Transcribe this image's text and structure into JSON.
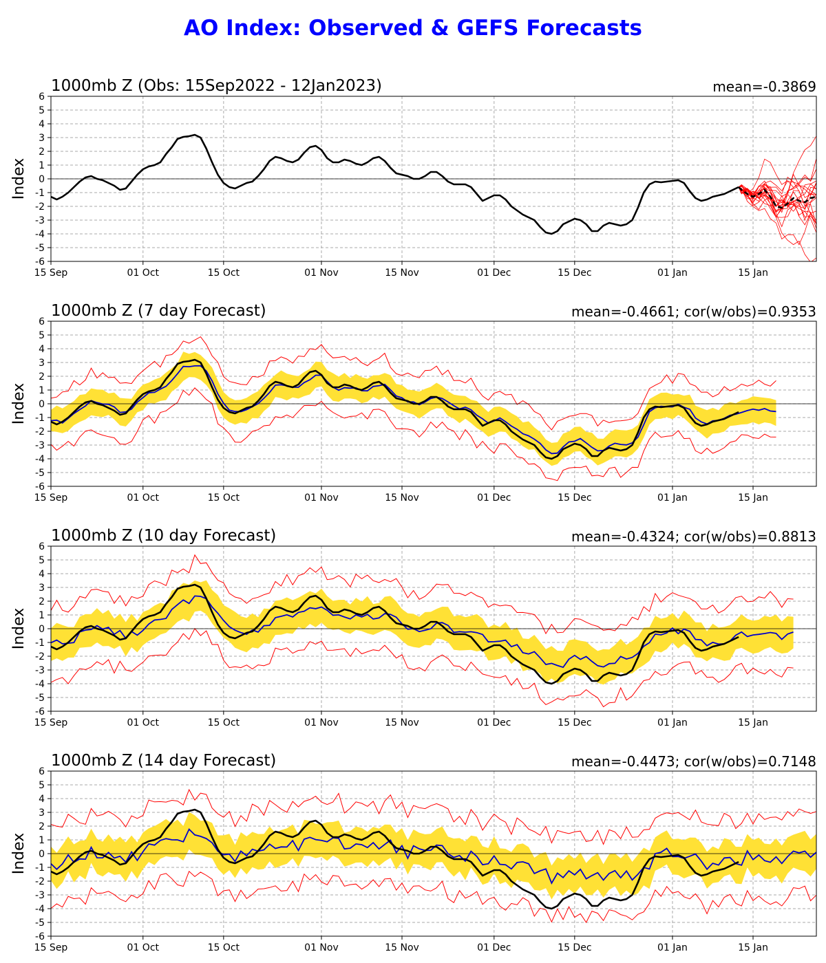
{
  "title": "AO Index: Observed & GEFS Forecasts",
  "colors": {
    "title": "#0000ff",
    "observed": "#000000",
    "ens_mean": "#0000cc",
    "members": "#ff0000",
    "spread": "#ffe135",
    "grid": "#aaaaaa"
  },
  "chart_data": [
    {
      "type": "line",
      "title": "1000mb Z (Obs: 15Sep2022 - 12Jan2023)",
      "stat_text": "mean=-0.3869",
      "ylabel": "Index",
      "ylim": [
        -6,
        6
      ],
      "yticks": [
        -6,
        -5,
        -4,
        -3,
        -2,
        -1,
        0,
        1,
        2,
        3,
        4,
        5,
        6
      ],
      "xlim_days": [
        0,
        133
      ],
      "x_ticks": [
        {
          "day": 0,
          "label": "15 Sep"
        },
        {
          "day": 16,
          "label": "01 Oct"
        },
        {
          "day": 30,
          "label": "15 Oct"
        },
        {
          "day": 47,
          "label": "01 Nov"
        },
        {
          "day": 61,
          "label": "15 Nov"
        },
        {
          "day": 77,
          "label": "01 Dec"
        },
        {
          "day": 91,
          "label": "15 Dec"
        },
        {
          "day": 108,
          "label": "01 Jan"
        },
        {
          "day": 122,
          "label": "15 Jan"
        }
      ],
      "grid": true,
      "series": [
        {
          "role": "observed",
          "style": "solid",
          "points": [
            [
              0,
              -1.3
            ],
            [
              1,
              -1.5
            ],
            [
              2,
              -1.3
            ],
            [
              3,
              -1.0
            ],
            [
              4,
              -0.6
            ],
            [
              5,
              -0.2
            ],
            [
              6,
              0.1
            ],
            [
              7,
              0.2
            ],
            [
              8,
              0.0
            ],
            [
              9,
              -0.1
            ],
            [
              10,
              -0.3
            ],
            [
              11,
              -0.5
            ],
            [
              12,
              -0.8
            ],
            [
              13,
              -0.7
            ],
            [
              14,
              -0.2
            ],
            [
              15,
              0.3
            ],
            [
              16,
              0.7
            ],
            [
              17,
              0.9
            ],
            [
              18,
              1.0
            ],
            [
              19,
              1.2
            ],
            [
              20,
              1.8
            ],
            [
              21,
              2.3
            ],
            [
              22,
              2.9
            ],
            [
              23,
              3.05
            ],
            [
              24,
              3.1
            ],
            [
              25,
              3.2
            ],
            [
              26,
              3.0
            ],
            [
              27,
              2.2
            ],
            [
              28,
              1.2
            ],
            [
              29,
              0.3
            ],
            [
              30,
              -0.3
            ],
            [
              31,
              -0.6
            ],
            [
              32,
              -0.7
            ],
            [
              33,
              -0.5
            ],
            [
              34,
              -0.3
            ],
            [
              35,
              -0.2
            ],
            [
              36,
              0.2
            ],
            [
              37,
              0.7
            ],
            [
              38,
              1.3
            ],
            [
              39,
              1.6
            ],
            [
              40,
              1.5
            ],
            [
              41,
              1.3
            ],
            [
              42,
              1.2
            ],
            [
              43,
              1.4
            ],
            [
              44,
              1.9
            ],
            [
              45,
              2.3
            ],
            [
              46,
              2.4
            ],
            [
              47,
              2.1
            ],
            [
              48,
              1.5
            ],
            [
              49,
              1.2
            ],
            [
              50,
              1.2
            ],
            [
              51,
              1.4
            ],
            [
              52,
              1.3
            ],
            [
              53,
              1.1
            ],
            [
              54,
              1.0
            ],
            [
              55,
              1.2
            ],
            [
              56,
              1.5
            ],
            [
              57,
              1.6
            ],
            [
              58,
              1.3
            ],
            [
              59,
              0.8
            ],
            [
              60,
              0.4
            ],
            [
              61,
              0.3
            ],
            [
              62,
              0.2
            ],
            [
              63,
              0.0
            ],
            [
              64,
              0.0
            ],
            [
              65,
              0.2
            ],
            [
              66,
              0.5
            ],
            [
              67,
              0.5
            ],
            [
              68,
              0.2
            ],
            [
              69,
              -0.2
            ],
            [
              70,
              -0.4
            ],
            [
              71,
              -0.4
            ],
            [
              72,
              -0.4
            ],
            [
              73,
              -0.6
            ],
            [
              74,
              -1.1
            ],
            [
              75,
              -1.6
            ],
            [
              76,
              -1.4
            ],
            [
              77,
              -1.2
            ],
            [
              78,
              -1.2
            ],
            [
              79,
              -1.5
            ],
            [
              80,
              -2.0
            ],
            [
              81,
              -2.3
            ],
            [
              82,
              -2.6
            ],
            [
              83,
              -2.8
            ],
            [
              84,
              -3.0
            ],
            [
              85,
              -3.5
            ],
            [
              86,
              -3.9
            ],
            [
              87,
              -4.0
            ],
            [
              88,
              -3.8
            ],
            [
              89,
              -3.3
            ],
            [
              90,
              -3.1
            ],
            [
              91,
              -2.9
            ],
            [
              92,
              -3.0
            ],
            [
              93,
              -3.3
            ],
            [
              94,
              -3.8
            ],
            [
              95,
              -3.8
            ],
            [
              96,
              -3.4
            ],
            [
              97,
              -3.2
            ],
            [
              98,
              -3.3
            ],
            [
              99,
              -3.4
            ],
            [
              100,
              -3.3
            ],
            [
              101,
              -3.0
            ],
            [
              102,
              -2.1
            ],
            [
              103,
              -1.0
            ],
            [
              104,
              -0.4
            ],
            [
              105,
              -0.2
            ],
            [
              106,
              -0.25
            ],
            [
              107,
              -0.2
            ],
            [
              108,
              -0.15
            ],
            [
              109,
              -0.1
            ],
            [
              110,
              -0.3
            ],
            [
              111,
              -0.9
            ],
            [
              112,
              -1.4
            ],
            [
              113,
              -1.6
            ],
            [
              114,
              -1.5
            ],
            [
              115,
              -1.3
            ],
            [
              116,
              -1.2
            ],
            [
              117,
              -1.1
            ],
            [
              118,
              -0.9
            ],
            [
              119,
              -0.7
            ],
            [
              119.5,
              -0.6
            ]
          ]
        },
        {
          "role": "ens_mean",
          "style": "dashed",
          "points": [
            [
              119.5,
              -0.6
            ],
            [
              120,
              -0.8
            ],
            [
              121,
              -1.1
            ],
            [
              122,
              -1.3
            ],
            [
              123,
              -1.1
            ],
            [
              124,
              -0.8
            ],
            [
              125,
              -1.3
            ],
            [
              126,
              -2.0
            ],
            [
              127,
              -2.1
            ],
            [
              128,
              -1.8
            ],
            [
              129,
              -1.4
            ],
            [
              130,
              -1.6
            ],
            [
              131,
              -1.7
            ],
            [
              132,
              -1.4
            ],
            [
              133,
              -1.3
            ]
          ]
        }
      ]
    },
    {
      "type": "line",
      "title": "1000mb Z (7 day Forecast)",
      "stat_text": "mean=-0.4661; cor(w/obs)=0.9353",
      "ylabel": "Index",
      "ylim": [
        -6,
        6
      ],
      "yticks": [
        -6,
        -5,
        -4,
        -3,
        -2,
        -1,
        0,
        1,
        2,
        3,
        4,
        5,
        6
      ],
      "xlim_days": [
        0,
        133
      ],
      "grid": true,
      "forecast_end_day": 126,
      "forecast_offset": 0.25,
      "spread_half_width": 0.9,
      "member_offset": 2.0
    },
    {
      "type": "line",
      "title": "1000mb Z (10 day Forecast)",
      "stat_text": "mean=-0.4324; cor(w/obs)=0.8813",
      "ylabel": "Index",
      "ylim": [
        -6,
        6
      ],
      "yticks": [
        -6,
        -5,
        -4,
        -3,
        -2,
        -1,
        0,
        1,
        2,
        3,
        4,
        5,
        6
      ],
      "xlim_days": [
        0,
        133
      ],
      "grid": true,
      "forecast_end_day": 129,
      "forecast_offset": 0.6,
      "spread_half_width": 1.2,
      "member_offset": 2.6
    },
    {
      "type": "line",
      "title": "1000mb Z (14 day Forecast)",
      "stat_text": "mean=-0.4473; cor(w/obs)=0.7148",
      "ylabel": "Index",
      "ylim": [
        -6,
        6
      ],
      "yticks": [
        -6,
        -5,
        -4,
        -3,
        -2,
        -1,
        0,
        1,
        2,
        3,
        4,
        5,
        6
      ],
      "xlim_days": [
        0,
        133
      ],
      "grid": true,
      "forecast_end_day": 133,
      "forecast_offset": 1.0,
      "spread_half_width": 1.3,
      "member_offset": 2.9
    }
  ]
}
